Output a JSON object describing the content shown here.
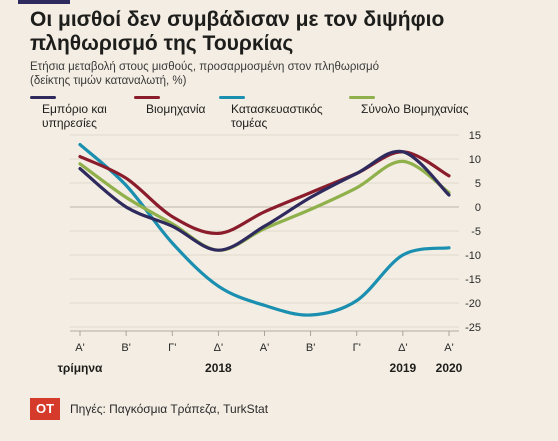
{
  "title": "Οι μισθοί δεν συμβάδισαν με τον διψήφιο πληθωρισμό της Τουρκίας",
  "subtitle_line1": "Ετήσια μεταβολή στους μισθούς, προσαρμοσμένη στον πληθωρισμό",
  "subtitle_line2": "(δείκτης τιμών καταναλωτή, %)",
  "source": "Πηγές: Παγκόσμια Τράπεζα, TurkStat",
  "logo": "OT",
  "colors": {
    "accent": "#2e2a5e",
    "background": "#f3ede3",
    "logo_bg": "#d63a2a"
  },
  "chart_data": {
    "type": "line",
    "x": [
      "Α'",
      "Β'",
      "Γ'",
      "Δ'",
      "Α'",
      "Β'",
      "Γ'",
      "Δ'",
      "Α'"
    ],
    "x_label": "τρίμηνα",
    "year_labels": [
      {
        "label": "2018",
        "at": 3
      },
      {
        "label": "2019",
        "at": 7
      },
      {
        "label": "2020",
        "at": 8
      }
    ],
    "ylim": [
      -25,
      15
    ],
    "yticks": [
      15,
      10,
      5,
      0,
      -5,
      -10,
      -15,
      -20,
      -25
    ],
    "y_axis_side": "right",
    "grid": true,
    "legend_position": "top",
    "series": [
      {
        "name": "Εμπόριο και υπηρεσίες",
        "color": "#2e2a5e",
        "values": [
          8,
          0,
          -4,
          -9,
          -4,
          2,
          7,
          11.5,
          2.5
        ]
      },
      {
        "name": "Βιομηχανία",
        "color": "#8b1c2c",
        "values": [
          10.5,
          6,
          -2,
          -5.5,
          -1,
          3,
          7,
          11.5,
          6.5
        ]
      },
      {
        "name": "Κατασκευαστικός τομέας",
        "color": "#1a8fb0",
        "values": [
          13,
          4.5,
          -7.5,
          -16.5,
          -20.5,
          -22.5,
          -19.5,
          -10,
          -8.5
        ]
      },
      {
        "name": "Σύνολο Βιομηχανίας",
        "color": "#8fb04a",
        "values": [
          9,
          2,
          -3.5,
          -9,
          -4.5,
          -0.5,
          4,
          9.5,
          3
        ]
      }
    ]
  }
}
